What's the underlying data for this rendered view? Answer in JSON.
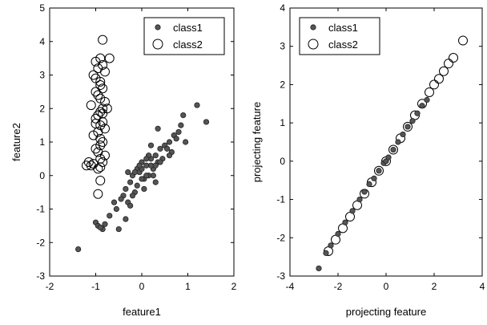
{
  "chart_data": [
    {
      "type": "scatter",
      "title": "",
      "xlabel": "feature1",
      "ylabel": "feature2",
      "xlim": [
        -2,
        2
      ],
      "ylim": [
        -3,
        5
      ],
      "xticks": [
        -2,
        -1,
        0,
        1,
        2
      ],
      "yticks": [
        -3,
        -2,
        -1,
        0,
        1,
        2,
        3,
        4,
        5
      ],
      "legend": "top-right",
      "grid": false,
      "series": [
        {
          "name": "class1",
          "marker": "filled-circle-small",
          "color": "#555555",
          "x": [
            -1.38,
            -1.0,
            -0.95,
            -0.85,
            -0.7,
            -0.55,
            -0.5,
            -0.4,
            -0.35,
            -0.3,
            -0.25,
            -0.2,
            -0.15,
            -0.1,
            -0.05,
            0.0,
            0.05,
            0.1,
            0.15,
            0.2,
            0.25,
            0.3,
            0.35,
            0.4,
            0.5,
            0.6,
            0.7,
            0.8,
            0.95,
            1.2,
            1.4,
            0.1,
            -0.1,
            0.2,
            0.0,
            0.3,
            -0.2,
            0.45,
            0.65,
            -0.6,
            -0.3,
            0.05,
            0.25,
            0.15,
            -0.05,
            0.4,
            0.55,
            0.85,
            0.75,
            0.35,
            -0.45,
            -0.25,
            0.1,
            0.2,
            0.0,
            -0.15,
            0.3,
            0.6,
            -0.35,
            -0.8,
            -0.9,
            0.9
          ],
          "y": [
            -2.2,
            -1.4,
            -1.5,
            -1.6,
            -1.2,
            -1.0,
            -1.6,
            -0.6,
            -0.4,
            -0.8,
            -0.2,
            0.0,
            -0.5,
            0.2,
            0.1,
            0.4,
            -0.1,
            0.3,
            0.0,
            0.5,
            0.2,
            0.6,
            0.4,
            0.8,
            0.9,
            1.0,
            1.2,
            1.3,
            1.0,
            2.1,
            1.6,
            0.0,
            -0.3,
            0.3,
            0.2,
            -0.2,
            -0.6,
            0.5,
            0.7,
            -0.8,
            0.1,
            -0.4,
            0.0,
            0.6,
            0.3,
            0.4,
            0.8,
            1.5,
            1.1,
            1.4,
            -0.7,
            -0.9,
            0.5,
            0.9,
            -0.1,
            0.1,
            0.3,
            0.6,
            -1.3,
            -1.45,
            -1.55,
            1.8
          ]
        },
        {
          "name": "class2",
          "marker": "open-circle-large",
          "color": "#000000",
          "x": [
            -0.85,
            -0.7,
            -0.9,
            -1.0,
            -0.95,
            -1.05,
            -0.8,
            -0.9,
            -0.85,
            -1.0,
            -0.95,
            -0.9,
            -0.8,
            -1.1,
            -0.85,
            -0.9,
            -0.95,
            -1.0,
            -0.85,
            -0.9,
            -0.8,
            -0.95,
            -1.05,
            -0.9,
            -0.85,
            -0.9,
            -1.0,
            -0.95,
            -0.8,
            -0.9,
            -0.85,
            -1.05,
            -1.1,
            -0.95,
            -0.9,
            -1.2,
            -1.15,
            -0.9,
            -0.75,
            -0.85,
            -1.0,
            -0.9,
            -0.95,
            -0.85,
            -1.0
          ],
          "y": [
            4.05,
            3.5,
            3.5,
            3.4,
            3.2,
            3.0,
            3.1,
            2.8,
            2.6,
            2.5,
            2.4,
            2.3,
            2.2,
            2.1,
            2.0,
            1.9,
            1.8,
            1.7,
            1.6,
            1.5,
            1.4,
            1.3,
            1.2,
            1.1,
            1.0,
            0.9,
            0.8,
            0.7,
            0.6,
            0.5,
            0.4,
            0.35,
            0.3,
            0.2,
            0.25,
            0.3,
            0.4,
            2.7,
            2.0,
            1.85,
            1.55,
            -0.15,
            -0.55,
            3.3,
            2.9
          ]
        }
      ]
    },
    {
      "type": "scatter",
      "title": "",
      "xlabel": "projecting feature",
      "ylabel": "projecting feature",
      "xlim": [
        -4,
        4
      ],
      "ylim": [
        -3,
        4
      ],
      "xticks": [
        -4,
        -2,
        0,
        2,
        4
      ],
      "yticks": [
        -3,
        -2,
        -1,
        0,
        1,
        2,
        3,
        4
      ],
      "legend": "top-left",
      "grid": false,
      "series": [
        {
          "name": "class1",
          "marker": "filled-circle-small",
          "color": "#555555",
          "x": [
            -2.8,
            -2.5,
            -2.3,
            -2.0,
            -1.7,
            -1.4,
            -1.1,
            -0.9,
            -0.7,
            -0.5,
            -0.3,
            -0.1,
            0.0,
            0.1,
            0.3,
            0.5,
            0.7,
            0.9,
            1.1,
            1.3,
            1.5,
            1.7
          ],
          "y": [
            -2.8,
            -2.4,
            -2.2,
            -1.9,
            -1.6,
            -1.3,
            -1.0,
            -0.8,
            -0.6,
            -0.45,
            -0.25,
            -0.05,
            0.0,
            0.1,
            0.3,
            0.5,
            0.7,
            0.9,
            1.05,
            1.25,
            1.45,
            1.6
          ]
        },
        {
          "name": "class2",
          "marker": "open-circle-large",
          "color": "#000000",
          "x": [
            -2.4,
            -2.1,
            -1.8,
            -1.5,
            -1.2,
            -0.9,
            -0.6,
            -0.3,
            0.0,
            0.3,
            0.6,
            0.9,
            1.2,
            1.5,
            1.8,
            2.0,
            2.2,
            2.4,
            2.6,
            2.8,
            3.2
          ],
          "y": [
            -2.35,
            -2.05,
            -1.75,
            -1.45,
            -1.15,
            -0.85,
            -0.55,
            -0.25,
            0.0,
            0.3,
            0.6,
            0.9,
            1.2,
            1.5,
            1.8,
            2.0,
            2.15,
            2.35,
            2.55,
            2.7,
            3.15
          ]
        }
      ]
    }
  ]
}
